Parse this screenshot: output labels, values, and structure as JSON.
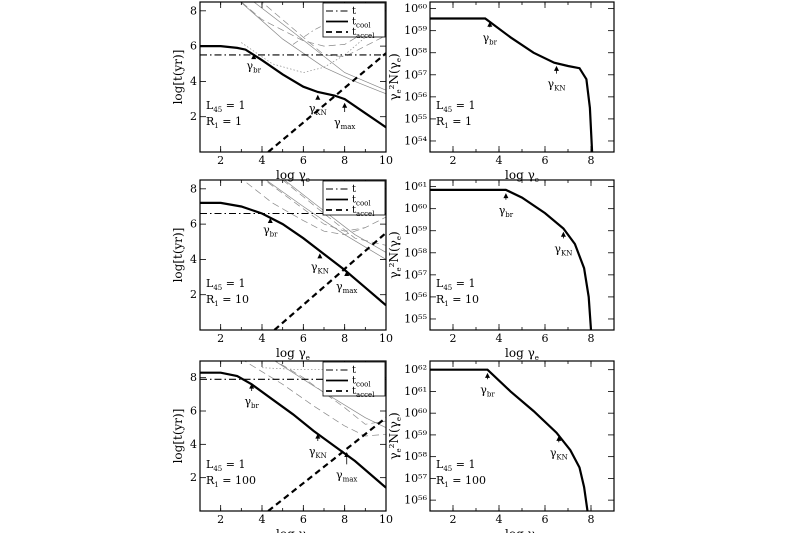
{
  "chart_data": [
    {
      "id": "timescales-r1",
      "type": "line",
      "title": "",
      "xlabel": "log γe",
      "ylabel": "log[t(yr)]",
      "xlim": [
        1,
        10
      ],
      "ylim": [
        0,
        8.5
      ],
      "xticks": [
        2,
        4,
        6,
        8,
        10
      ],
      "yticks": [
        2,
        4,
        6,
        8
      ],
      "legend": {
        "placement": "top-right",
        "entries": [
          "t",
          "t_cool",
          "t_accel"
        ]
      },
      "params": {
        "L45": "L45 = 1",
        "R1": "R1 = 1"
      },
      "annotations": [
        "γbr",
        "γKN",
        "γmax"
      ],
      "series": [
        {
          "name": "t",
          "style": "dashdot",
          "x": [
            1,
            10
          ],
          "y": [
            5.5,
            5.5
          ]
        },
        {
          "name": "t_cool",
          "style": "solid-thick",
          "x": [
            1,
            2,
            2.8,
            3.2,
            4,
            5,
            6,
            6.7,
            7.5,
            8,
            9,
            10
          ],
          "y": [
            6.0,
            6.0,
            5.9,
            5.8,
            5.2,
            4.4,
            3.7,
            3.4,
            3.2,
            3.0,
            2.2,
            1.4
          ]
        },
        {
          "name": "t_accel",
          "style": "dashed-thick",
          "x": [
            4.3,
            10
          ],
          "y": [
            0,
            5.6
          ]
        }
      ]
    },
    {
      "id": "spectrum-r1",
      "type": "line",
      "title": "",
      "xlabel": "log γe",
      "ylabel": "γe²N(γe)",
      "xlim": [
        1,
        9
      ],
      "ylim": [
        53.5,
        60.3
      ],
      "xticks": [
        2,
        4,
        6,
        8
      ],
      "ytick_labels": [
        "10⁵⁴",
        "10⁵⁵",
        "10⁵⁶",
        "10⁵⁷",
        "10⁵⁸",
        "10⁵⁹",
        "10⁶⁰"
      ],
      "ytick_values": [
        54,
        55,
        56,
        57,
        58,
        59,
        60
      ],
      "params": {
        "L45": "L45 = 1",
        "R1": "R1 = 1"
      },
      "annotations": [
        "γbr",
        "γKN"
      ],
      "series": [
        {
          "name": "γe²N(γe)",
          "style": "solid-thick",
          "x": [
            1,
            2.5,
            3.4,
            3.6,
            4.5,
            5.5,
            6.4,
            7,
            7.5,
            7.8,
            7.95,
            8.05
          ],
          "y": [
            59.55,
            59.55,
            59.55,
            59.4,
            58.7,
            58.0,
            57.55,
            57.4,
            57.3,
            56.8,
            55.5,
            53.5
          ]
        }
      ]
    },
    {
      "id": "timescales-r10",
      "type": "line",
      "title": "",
      "xlabel": "log γe",
      "ylabel": "log[t(yr)]",
      "xlim": [
        1,
        10
      ],
      "ylim": [
        0,
        8.5
      ],
      "xticks": [
        2,
        4,
        6,
        8,
        10
      ],
      "yticks": [
        2,
        4,
        6,
        8
      ],
      "legend": {
        "placement": "top-right",
        "entries": [
          "t",
          "t_cool",
          "t_accel"
        ]
      },
      "params": {
        "L45": "L45 = 1",
        "R1": "R1 = 10"
      },
      "annotations": [
        "γbr",
        "γKN",
        "γmax"
      ],
      "series": [
        {
          "name": "t",
          "style": "dashdot",
          "x": [
            1,
            10
          ],
          "y": [
            6.6,
            6.6
          ]
        },
        {
          "name": "t_cool",
          "style": "solid-thick",
          "x": [
            1,
            2,
            3,
            4,
            5,
            6,
            7,
            8,
            9,
            10
          ],
          "y": [
            7.2,
            7.2,
            7.0,
            6.6,
            6.0,
            5.2,
            4.3,
            3.4,
            2.4,
            1.4
          ]
        },
        {
          "name": "t_accel",
          "style": "dashed-thick",
          "x": [
            4.6,
            10
          ],
          "y": [
            0,
            5.5
          ]
        }
      ]
    },
    {
      "id": "spectrum-r10",
      "type": "line",
      "title": "",
      "xlabel": "log γe",
      "ylabel": "γe²N(γe)",
      "xlim": [
        1,
        9
      ],
      "ylim": [
        54.5,
        61.3
      ],
      "xticks": [
        2,
        4,
        6,
        8
      ],
      "ytick_labels": [
        "10⁵⁵",
        "10⁵⁶",
        "10⁵⁷",
        "10⁵⁸",
        "10⁵⁹",
        "10⁶⁰",
        "10⁶¹"
      ],
      "ytick_values": [
        55,
        56,
        57,
        58,
        59,
        60,
        61
      ],
      "params": {
        "L45": "L45 = 1",
        "R1": "R1 = 10"
      },
      "annotations": [
        "γbr",
        "γKN"
      ],
      "series": [
        {
          "name": "γe²N(γe)",
          "style": "solid-thick",
          "x": [
            1,
            3,
            4.3,
            5,
            6,
            6.8,
            7.3,
            7.7,
            7.9,
            8.0
          ],
          "y": [
            60.85,
            60.85,
            60.85,
            60.5,
            59.8,
            59.1,
            58.4,
            57.3,
            56.0,
            54.5
          ]
        }
      ]
    },
    {
      "id": "timescales-r100",
      "type": "line",
      "title": "",
      "xlabel": "log γe",
      "ylabel": "log[t(yr)]",
      "xlim": [
        1,
        10
      ],
      "ylim": [
        0,
        9
      ],
      "xticks": [
        2,
        4,
        6,
        8,
        10
      ],
      "yticks": [
        2,
        4,
        6,
        8
      ],
      "legend": {
        "placement": "top-right",
        "entries": [
          "t",
          "t_cool",
          "t_accel"
        ]
      },
      "params": {
        "L45": "L45 = 1",
        "R1": "R1 = 100"
      },
      "annotations": [
        "γbr",
        "γKN",
        "γmax"
      ],
      "series": [
        {
          "name": "t",
          "style": "dashdot",
          "x": [
            1,
            10
          ],
          "y": [
            7.9,
            7.9
          ]
        },
        {
          "name": "t_cool",
          "style": "solid-thick",
          "x": [
            1,
            2,
            2.8,
            3.5,
            4.5,
            5.5,
            6.5,
            7.5,
            8.5,
            10
          ],
          "y": [
            8.3,
            8.3,
            8.1,
            7.6,
            6.7,
            5.8,
            4.8,
            3.9,
            3.0,
            1.4
          ]
        },
        {
          "name": "t_accel",
          "style": "dashed-thick",
          "x": [
            4.3,
            10
          ],
          "y": [
            0,
            5.6
          ]
        }
      ]
    },
    {
      "id": "spectrum-r100",
      "type": "line",
      "title": "",
      "xlabel": "log γe",
      "ylabel": "γe²N(γe)",
      "xlim": [
        1,
        9
      ],
      "ylim": [
        55.5,
        62.4
      ],
      "xticks": [
        2,
        4,
        6,
        8
      ],
      "ytick_labels": [
        "10⁵⁶",
        "10⁵⁷",
        "10⁵⁸",
        "10⁵⁹",
        "10⁶⁰",
        "10⁶¹",
        "10⁶²"
      ],
      "ytick_values": [
        56,
        57,
        58,
        59,
        60,
        61,
        62
      ],
      "params": {
        "L45": "L45 = 1",
        "R1": "R1 = 100"
      },
      "annotations": [
        "γbr",
        "γKN"
      ],
      "series": [
        {
          "name": "γe²N(γe)",
          "style": "solid-thick",
          "x": [
            1,
            2.5,
            3.5,
            4.5,
            5.5,
            6.5,
            7.1,
            7.5,
            7.7,
            7.85
          ],
          "y": [
            62.0,
            62.0,
            62.0,
            61.0,
            60.1,
            59.1,
            58.3,
            57.5,
            56.6,
            55.5
          ]
        }
      ]
    }
  ]
}
